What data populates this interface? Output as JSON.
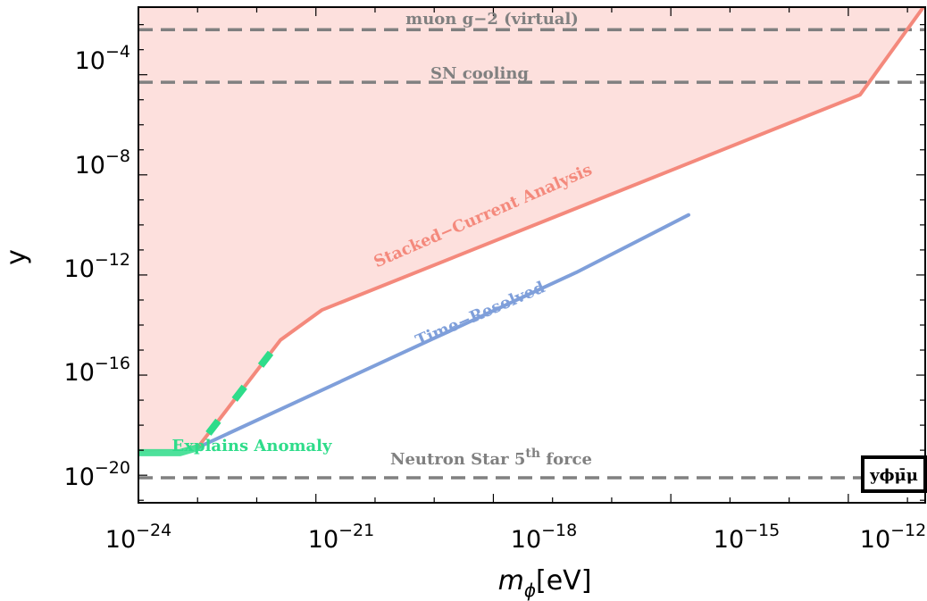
{
  "chart_data": {
    "type": "line",
    "xlabel": "m",
    "xlabel_sub": "ϕ",
    "xlabel_unit": "[eV]",
    "ylabel": "y",
    "x_scale": "log10",
    "y_scale": "log10",
    "xlim_log10": [
      -24,
      -10.7
    ],
    "ylim_log10": [
      -21.1,
      -1.3
    ],
    "x_ticks": [
      {
        "exp": -24,
        "base": "10",
        "sup": "−24"
      },
      {
        "exp": -21,
        "base": "10",
        "sup": "−21"
      },
      {
        "exp": -18,
        "base": "10",
        "sup": "−18"
      },
      {
        "exp": -15,
        "base": "10",
        "sup": "−15"
      },
      {
        "exp": -12,
        "base": "10",
        "sup": "−12"
      }
    ],
    "y_ticks": [
      {
        "exp": -20,
        "base": "10",
        "sup": "−20"
      },
      {
        "exp": -16,
        "base": "10",
        "sup": "−16"
      },
      {
        "exp": -12,
        "base": "10",
        "sup": "−12"
      },
      {
        "exp": -8,
        "base": "10",
        "sup": "−8"
      },
      {
        "exp": -4,
        "base": "10",
        "sup": "−4"
      }
    ],
    "series": [
      {
        "name": "Stacked−Current Analysis",
        "color": "#f4897c",
        "fill_color": "#fde0dd",
        "points_log10": [
          [
            -23.0,
            -18.9
          ],
          [
            -21.6,
            -14.6
          ],
          [
            -20.9,
            -13.4
          ],
          [
            -11.8,
            -4.8
          ],
          [
            -10.7,
            -1.2
          ]
        ]
      },
      {
        "name": "Time−Resolved",
        "color": "#7f9fda",
        "points_log10": [
          [
            -23.0,
            -18.9
          ],
          [
            -16.6,
            -11.9
          ],
          [
            -14.7,
            -9.6
          ]
        ]
      }
    ],
    "explains_anomaly": {
      "color": "#2edc8a",
      "solid_points_log10": [
        [
          -24.0,
          -19.1
        ],
        [
          -23.3,
          -19.1
        ],
        [
          -23.0,
          -18.9
        ]
      ],
      "dashed_points_log10": [
        [
          -23.0,
          -18.9
        ],
        [
          -21.6,
          -14.6
        ]
      ]
    },
    "hlines": [
      {
        "label": "muon g−2 (virtual)",
        "y_log10": -2.2
      },
      {
        "label": "SN cooling",
        "y_log10": -4.3
      },
      {
        "label": "Neutron Star 5",
        "label_sup": "th",
        "label_tail": " force",
        "y_log10": -20.1
      }
    ],
    "annotations": {
      "stacked_label": "Stacked−Current Analysis",
      "time_label": "Time−Resolved",
      "anomaly_label": "Explains Anomaly"
    },
    "interaction_label": "yϕμ̄μ",
    "hline_color": "#808080"
  }
}
